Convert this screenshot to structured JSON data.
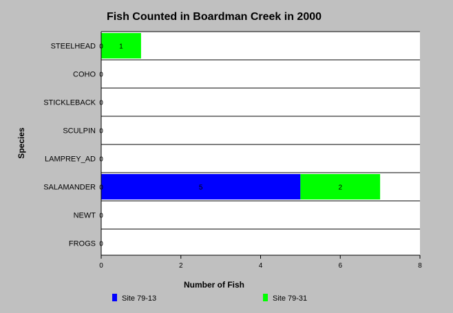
{
  "chart_data": {
    "type": "bar",
    "orientation": "horizontal",
    "stacked": true,
    "title": "Fish Counted in Boardman Creek in 2000",
    "xlabel": "Number of Fish",
    "ylabel": "Species",
    "categories": [
      "STEELHEAD",
      "COHO",
      "STICKLEBACK",
      "SCULPIN",
      "LAMPREY_AD",
      "SALAMANDER",
      "NEWT",
      "FROGS"
    ],
    "series": [
      {
        "name": "Site 79-13",
        "color": "#0000ff",
        "values": [
          0,
          0,
          0,
          0,
          0,
          5,
          0,
          0
        ]
      },
      {
        "name": "Site 79-31",
        "color": "#00ff00",
        "values": [
          1,
          0,
          0,
          0,
          0,
          2,
          0,
          0
        ]
      }
    ],
    "xlim": [
      0,
      8
    ],
    "xticks": [
      0,
      2,
      4,
      6,
      8
    ],
    "grid": "horizontal-separators",
    "legend_position": "bottom"
  }
}
